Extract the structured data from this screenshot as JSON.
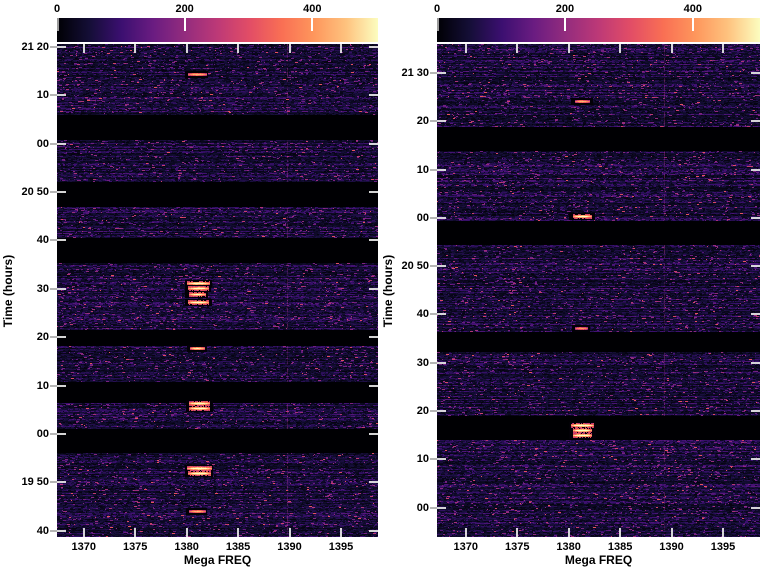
{
  "figure": {
    "background": "#ffffff",
    "colormap": "magma",
    "colorbar_gradient": [
      "#000004",
      "#140e36",
      "#3b0f70",
      "#6a1c81",
      "#942c7e",
      "#bd3977",
      "#e24d66",
      "#f96f54",
      "#fe965c",
      "#fec27e",
      "#fcfdbf"
    ],
    "tick_color": "#ebebeb",
    "text_color": "#000000"
  },
  "chart_data": [
    {
      "id": "left",
      "type": "heatmap",
      "xlabel": "Mega FREQ",
      "ylabel": "Time (hours)",
      "freq_range_mhz": [
        1367.4,
        1398.6
      ],
      "x_ticks_mhz": [
        1370,
        1375,
        1380,
        1385,
        1390,
        1395
      ],
      "time_top_min": 1280.6,
      "time_bottom_min": 1178.7,
      "y_ticks": [
        {
          "label": "21 20",
          "min": 1280
        },
        {
          "label": "10",
          "min": 1270
        },
        {
          "label": "00",
          "min": 1260
        },
        {
          "label": "20 50",
          "min": 1250
        },
        {
          "label": "40",
          "min": 1240
        },
        {
          "label": "30",
          "min": 1230
        },
        {
          "label": "20",
          "min": 1220
        },
        {
          "label": "10",
          "min": 1210
        },
        {
          "label": "00",
          "min": 1200
        },
        {
          "label": "19 50",
          "min": 1190
        },
        {
          "label": "40",
          "min": 1180
        }
      ],
      "colorbar": {
        "ticks": [
          0,
          200,
          400
        ],
        "max": 503
      },
      "data_gaps_min": [
        [
          1265.9,
          1260.8
        ],
        [
          1252.0,
          1247.0
        ],
        [
          1240.5,
          1235.3
        ],
        [
          1221.4,
          1218.1
        ],
        [
          1210.7,
          1206.5
        ],
        [
          1201.1,
          1196.0
        ]
      ],
      "features": [
        {
          "time": "21:14",
          "time_min": 1274.2,
          "freq_mhz": 1381.0,
          "width_mhz": 1.7,
          "rows": 1,
          "intensity": 0.62
        },
        {
          "time": "20:31",
          "time_min": 1231.2,
          "freq_mhz": 1381.1,
          "width_mhz": 2.0,
          "rows": 1,
          "intensity": 0.95
        },
        {
          "time": "20:30",
          "time_min": 1230.0,
          "freq_mhz": 1381.1,
          "width_mhz": 1.9,
          "rows": 1,
          "intensity": 0.92
        },
        {
          "time": "20:29",
          "time_min": 1228.9,
          "freq_mhz": 1381.0,
          "width_mhz": 1.7,
          "rows": 1,
          "intensity": 0.85
        },
        {
          "time": "20:27",
          "time_min": 1227.1,
          "freq_mhz": 1381.1,
          "width_mhz": 2.0,
          "rows": 1,
          "intensity": 0.93
        },
        {
          "time": "20:18",
          "time_min": 1217.6,
          "freq_mhz": 1381.0,
          "width_mhz": 1.4,
          "rows": 1,
          "intensity": 0.8
        },
        {
          "time": "20:06",
          "time_min": 1205.8,
          "freq_mhz": 1381.2,
          "width_mhz": 2.0,
          "rows": 2,
          "intensity": 0.95
        },
        {
          "time": "19:52",
          "time_min": 1192.3,
          "freq_mhz": 1381.2,
          "width_mhz": 2.1,
          "rows": 2,
          "intensity": 1.0
        },
        {
          "time": "19:44",
          "time_min": 1184.0,
          "freq_mhz": 1381.0,
          "width_mhz": 1.5,
          "rows": 1,
          "intensity": 0.6
        }
      ],
      "rfi_line_mhz": 1389.8
    },
    {
      "id": "right",
      "type": "heatmap",
      "xlabel": "Mega FREQ",
      "ylabel": "Time (hours)",
      "freq_range_mhz": [
        1367.2,
        1398.6
      ],
      "x_ticks_mhz": [
        1370,
        1375,
        1380,
        1385,
        1390,
        1395
      ],
      "time_top_min": 1296.0,
      "time_bottom_min": 1193.9,
      "y_ticks": [
        {
          "label": "21 30",
          "min": 1290
        },
        {
          "label": "20",
          "min": 1280
        },
        {
          "label": "10",
          "min": 1270
        },
        {
          "label": "00",
          "min": 1260
        },
        {
          "label": "20 50",
          "min": 1250
        },
        {
          "label": "40",
          "min": 1240
        },
        {
          "label": "30",
          "min": 1230
        },
        {
          "label": "20",
          "min": 1220
        },
        {
          "label": "10",
          "min": 1210
        },
        {
          "label": "00",
          "min": 1200
        }
      ],
      "colorbar": {
        "ticks": [
          0,
          200,
          400
        ],
        "max": 505
      },
      "data_gaps_min": [
        [
          1278.8,
          1273.9
        ],
        [
          1259.4,
          1254.4
        ],
        [
          1236.4,
          1232.2
        ],
        [
          1219.0,
          1214.0
        ]
      ],
      "features": [
        {
          "time": "21:24",
          "time_min": 1284.1,
          "freq_mhz": 1381.3,
          "width_mhz": 1.6,
          "rows": 1,
          "intensity": 0.62
        },
        {
          "time": "21:00",
          "time_min": 1260.3,
          "freq_mhz": 1381.3,
          "width_mhz": 1.9,
          "rows": 1,
          "intensity": 0.95
        },
        {
          "time": "20:37",
          "time_min": 1237.0,
          "freq_mhz": 1381.2,
          "width_mhz": 1.2,
          "rows": 1,
          "intensity": 0.5
        },
        {
          "time": "20:16",
          "time_min": 1216.0,
          "freq_mhz": 1381.3,
          "width_mhz": 2.0,
          "rows": 3,
          "intensity": 1.0
        }
      ],
      "rfi_line_mhz": 1389.3
    }
  ]
}
